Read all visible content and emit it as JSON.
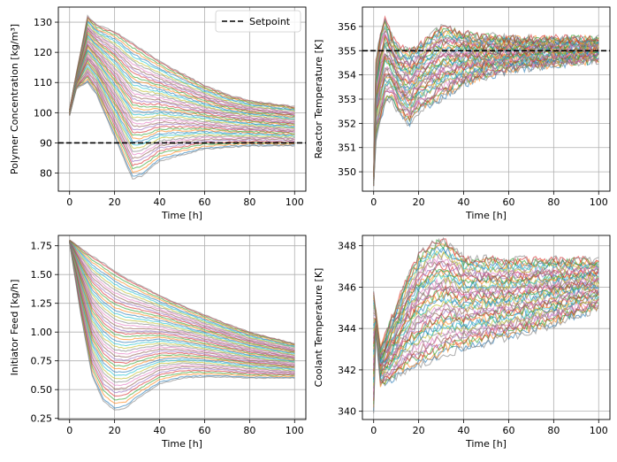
{
  "chart_data": [
    {
      "type": "line",
      "xlabel": "Time [h]",
      "ylabel": "Polymer Concentration [kg/m³]",
      "xlim": [
        -5,
        105
      ],
      "ylim": [
        74,
        135
      ],
      "xticks": [
        0,
        20,
        40,
        60,
        80,
        100
      ],
      "yticks": [
        80,
        90,
        100,
        110,
        120,
        130
      ],
      "grid": true,
      "legend": {
        "position": "top-right",
        "entries": [
          "Setpoint"
        ]
      },
      "setpoint": 90,
      "envelope": {
        "x": [
          0,
          3,
          8,
          12,
          20,
          28,
          32,
          40,
          50,
          60,
          70,
          80,
          90,
          100
        ],
        "low": [
          99,
          108,
          110,
          106,
          92,
          78,
          79,
          84,
          86,
          88,
          88.5,
          89,
          89,
          89
        ],
        "high": [
          101,
          113,
          132,
          129,
          127,
          123,
          121,
          117,
          113,
          109,
          106,
          104,
          103,
          102
        ]
      }
    },
    {
      "type": "line",
      "xlabel": "Time [h]",
      "ylabel": "Reactor Temperature [K]",
      "xlim": [
        -5,
        105
      ],
      "ylim": [
        349.2,
        356.8
      ],
      "xticks": [
        0,
        20,
        40,
        60,
        80,
        100
      ],
      "yticks": [
        350,
        351,
        352,
        353,
        354,
        355,
        356
      ],
      "grid": true,
      "setpoint": 355,
      "envelope": {
        "x": [
          0,
          1,
          3,
          5,
          8,
          12,
          16,
          20,
          30,
          40,
          60,
          80,
          100
        ],
        "low": [
          349.4,
          351.4,
          352.0,
          352.8,
          353.0,
          352.3,
          352.0,
          352.5,
          353.0,
          353.6,
          354.2,
          354.4,
          354.6
        ],
        "high": [
          349.8,
          354.5,
          355.8,
          356.4,
          355.6,
          355.1,
          355.0,
          355.2,
          356.0,
          355.7,
          355.5,
          355.5,
          355.5
        ]
      }
    },
    {
      "type": "line",
      "xlabel": "Time [h]",
      "ylabel": "Initiator Feed [kg/h]",
      "xlim": [
        -5,
        105
      ],
      "ylim": [
        0.24,
        1.84
      ],
      "xticks": [
        0,
        20,
        40,
        60,
        80,
        100
      ],
      "yticks": [
        0.25,
        0.5,
        0.75,
        1.0,
        1.25,
        1.5,
        1.75
      ],
      "ytick_labels": [
        "0.25",
        "0.50",
        "0.75",
        "1.00",
        "1.25",
        "1.50",
        "1.75"
      ],
      "grid": true,
      "envelope": {
        "x": [
          0,
          5,
          10,
          15,
          20,
          25,
          30,
          40,
          50,
          60,
          70,
          80,
          100
        ],
        "low": [
          1.78,
          1.15,
          0.62,
          0.4,
          0.32,
          0.34,
          0.42,
          0.55,
          0.6,
          0.61,
          0.61,
          0.6,
          0.6
        ],
        "high": [
          1.8,
          1.73,
          1.66,
          1.6,
          1.53,
          1.47,
          1.42,
          1.32,
          1.23,
          1.15,
          1.07,
          1.0,
          0.9
        ]
      }
    },
    {
      "type": "line",
      "xlabel": "Time [h]",
      "ylabel": "Coolant Temperature [K]",
      "xlim": [
        -5,
        105
      ],
      "ylim": [
        339.6,
        348.5
      ],
      "xticks": [
        0,
        20,
        40,
        60,
        80,
        100
      ],
      "yticks": [
        340,
        342,
        344,
        346,
        348
      ],
      "grid": true,
      "envelope": {
        "x": [
          0,
          1,
          3,
          8,
          15,
          20,
          28,
          32,
          40,
          60,
          80,
          100
        ],
        "low": [
          339.9,
          344.0,
          341.3,
          341.5,
          342.0,
          342.2,
          342.5,
          342.8,
          343.0,
          343.6,
          344.2,
          345.0
        ],
        "high": [
          345.8,
          344.8,
          343.0,
          344.5,
          346.5,
          347.5,
          348.3,
          348.2,
          347.4,
          347.3,
          347.3,
          347.3
        ]
      }
    }
  ],
  "colors": {
    "series_palette": [
      "#1f77b4",
      "#ff7f0e",
      "#2ca02c",
      "#d62728",
      "#9467bd",
      "#8c564b",
      "#e377c2",
      "#7f7f7f",
      "#bcbd22",
      "#17becf"
    ],
    "setpoint_line": "#000000",
    "grid": "#b0b0b0"
  }
}
